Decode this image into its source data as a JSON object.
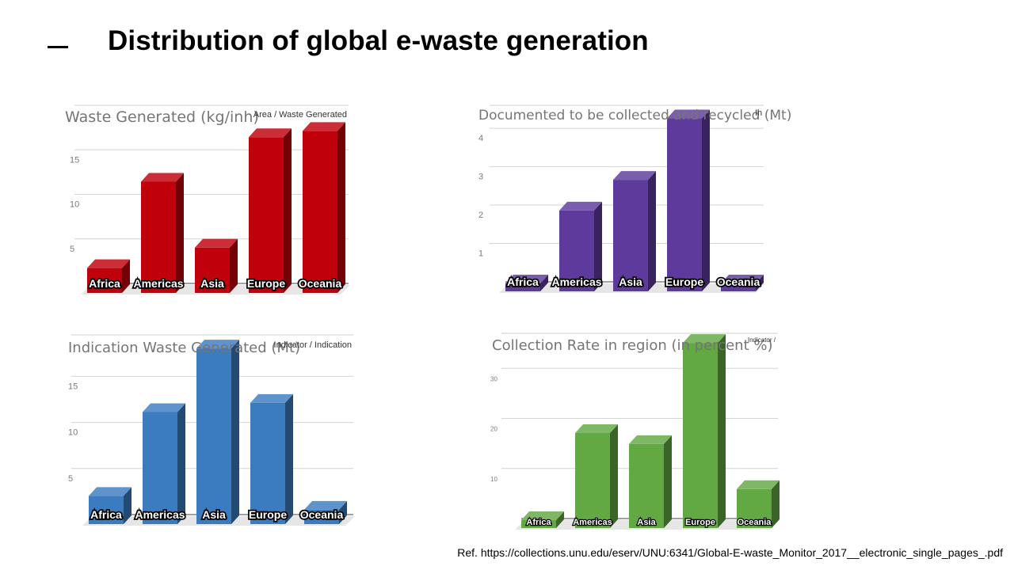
{
  "slide": {
    "title": "Distribution of global e-waste generation",
    "reference": "Ref. https://collections.unu.edu/eserv/UNU:6341/Global-E-waste_Monitor_2017__electronic_single_pages_.pdf"
  },
  "chart_data": [
    {
      "type": "bar",
      "title": "Waste Generated (kg/inh)",
      "corner_label": "Area / Waste Generated",
      "categories": [
        "Africa",
        "Americas",
        "Asia",
        "Europe",
        "Oceania"
      ],
      "series": [
        {
          "values": [
            1.9,
            11.6,
            4.2,
            16.6,
            17.3
          ]
        }
      ],
      "yticks": [
        5,
        10,
        15
      ],
      "ylim": [
        0,
        20
      ],
      "color": "#c0000b",
      "grid": true
    },
    {
      "type": "bar",
      "title": "Documented to be collected and recycled (Mt)",
      "corner_label": "In",
      "categories": [
        "Africa",
        "Americas",
        "Asia",
        "Europe",
        "Oceania"
      ],
      "series": [
        {
          "values": [
            0.0,
            1.9,
            2.7,
            4.3,
            0.0
          ]
        }
      ],
      "yticks": [
        1,
        2,
        3,
        4
      ],
      "ylim": [
        0,
        4.6
      ],
      "color": "#5e3a9c",
      "grid": true
    },
    {
      "type": "bar",
      "title": "Indication Waste Generated (Mt)",
      "corner_label": "Indicator / Indication",
      "categories": [
        "Africa",
        "Americas",
        "Asia",
        "Europe",
        "Oceania"
      ],
      "series": [
        {
          "values": [
            2.2,
            11.3,
            18.2,
            12.3,
            0.7
          ]
        }
      ],
      "yticks": [
        5,
        10,
        15
      ],
      "ylim": [
        0,
        19.5
      ],
      "color": "#3b7cc0",
      "grid": true
    },
    {
      "type": "bar",
      "title": "Collection Rate in region (in percent %)",
      "corner_label": "Indicator /",
      "categories": [
        "Africa",
        "Americas",
        "Asia",
        "Europe",
        "Oceania"
      ],
      "series": [
        {
          "values": [
            0.0,
            17.4,
            15.2,
            35.4,
            6.2
          ]
        }
      ],
      "yticks": [
        10,
        20,
        30
      ],
      "ylim": [
        0,
        37
      ],
      "color": "#62a843",
      "grid": true
    }
  ]
}
